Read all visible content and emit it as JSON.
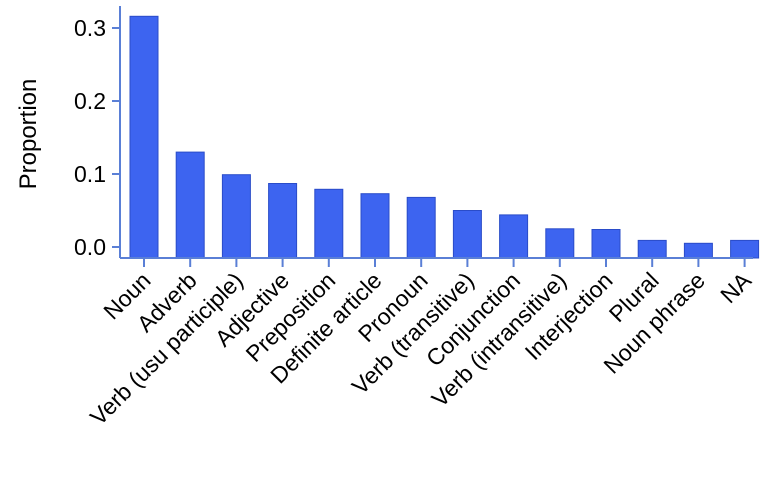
{
  "chart_data": {
    "type": "bar",
    "ylabel": "Proportion",
    "xlabel": "",
    "ylim": [
      0,
      0.33
    ],
    "yticks": [
      0.0,
      0.1,
      0.2,
      0.3
    ],
    "ytick_labels": [
      "0.0",
      "0.1",
      "0.2",
      "0.3"
    ],
    "grid": false,
    "categories": [
      "Noun",
      "Adverb",
      "Verb (usu participle)",
      "Adjective",
      "Preposition",
      "Definite article",
      "Pronoun",
      "Verb (transitive)",
      "Conjunction",
      "Verb (intransitive)",
      "Interjection",
      "Plural",
      "Noun phrase",
      "NA"
    ],
    "values": [
      0.316,
      0.13,
      0.099,
      0.087,
      0.079,
      0.073,
      0.068,
      0.05,
      0.044,
      0.025,
      0.024,
      0.009,
      0.005,
      0.009
    ],
    "colors": {
      "bar": "#3d64f0",
      "bar_edge": "#2a4cc9",
      "axis": "#5a7fd6",
      "text": "#000000"
    }
  }
}
